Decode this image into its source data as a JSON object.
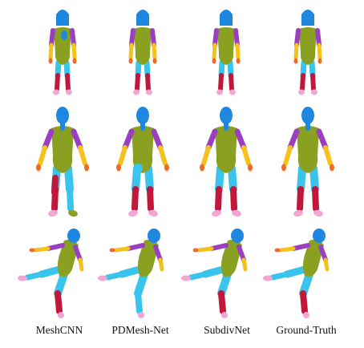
{
  "figure": {
    "columns": [
      {
        "label": "MeshCNN"
      },
      {
        "label": "PDMesh-Net"
      },
      {
        "label": "SubdivNet"
      },
      {
        "label": "Ground-Truth"
      }
    ],
    "rows": [
      {
        "pose": "standing"
      },
      {
        "pose": "a-pose"
      },
      {
        "pose": "arabesque"
      }
    ],
    "palette": {
      "head": "#1e88e0",
      "torso": "#8aa021",
      "upper_arm": "#9a3fc0",
      "forearm": "#f4c21a",
      "hand": "#f26a2a",
      "thigh": "#38c4ec",
      "shin": "#c2173c",
      "foot": "#f2a6d2"
    }
  }
}
